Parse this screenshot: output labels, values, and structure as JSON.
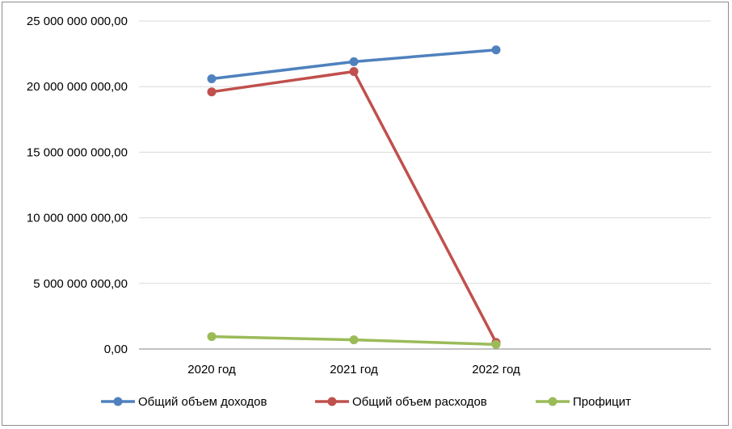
{
  "chart_data": {
    "type": "line",
    "title": "",
    "xlabel": "",
    "ylabel": "",
    "categories": [
      "2020 год",
      "2021 год",
      "2022 год"
    ],
    "ylim": [
      0,
      25000000000
    ],
    "yticks": [
      0,
      5000000000,
      10000000000,
      15000000000,
      20000000000,
      25000000000
    ],
    "ytick_labels": [
      "0,00",
      "5 000 000 000,00",
      "10 000 000 000,00",
      "15 000 000 000,00",
      "20 000 000 000,00",
      "25 000 000 000,00"
    ],
    "grid": true,
    "legend_position": "bottom",
    "series": [
      {
        "name": "Общий объем доходов",
        "color": "#4F81BD",
        "values": [
          20600000000,
          21900000000,
          22800000000
        ]
      },
      {
        "name": "Общий объем расходов",
        "color": "#C0504D",
        "values": [
          19600000000,
          21150000000,
          500000000
        ]
      },
      {
        "name": "Профицит",
        "color": "#9BBB59",
        "values": [
          950000000,
          700000000,
          350000000
        ]
      }
    ]
  }
}
